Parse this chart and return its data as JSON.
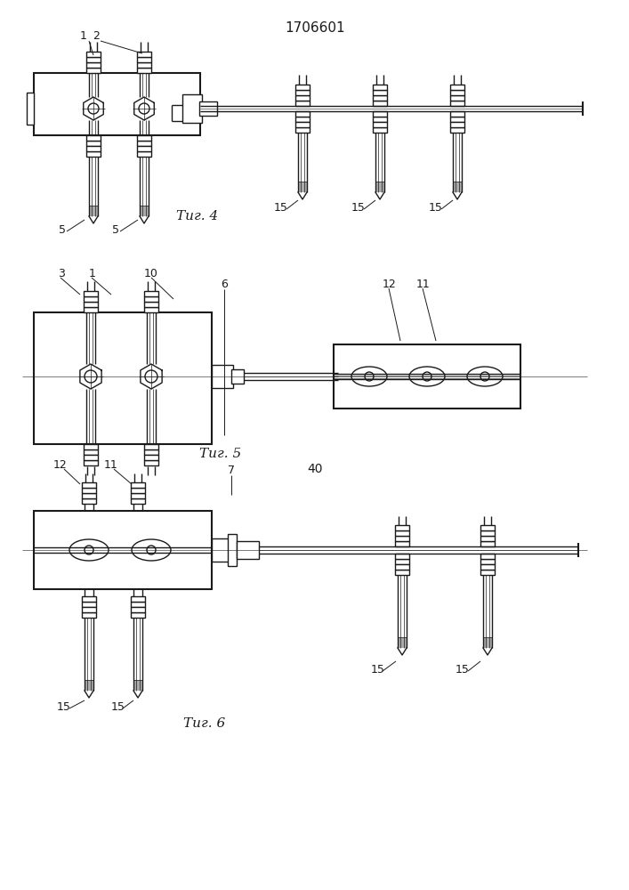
{
  "title": "1706601",
  "fig4_label": "Τиг. 4",
  "fig5_label": "Τиг. 5",
  "fig6_label": "Τиг. 6",
  "number_40": "40",
  "bg_color": "#ffffff",
  "line_color": "#1a1a1a",
  "line_width": 1.0,
  "fig_width": 7.07,
  "fig_height": 10.0
}
